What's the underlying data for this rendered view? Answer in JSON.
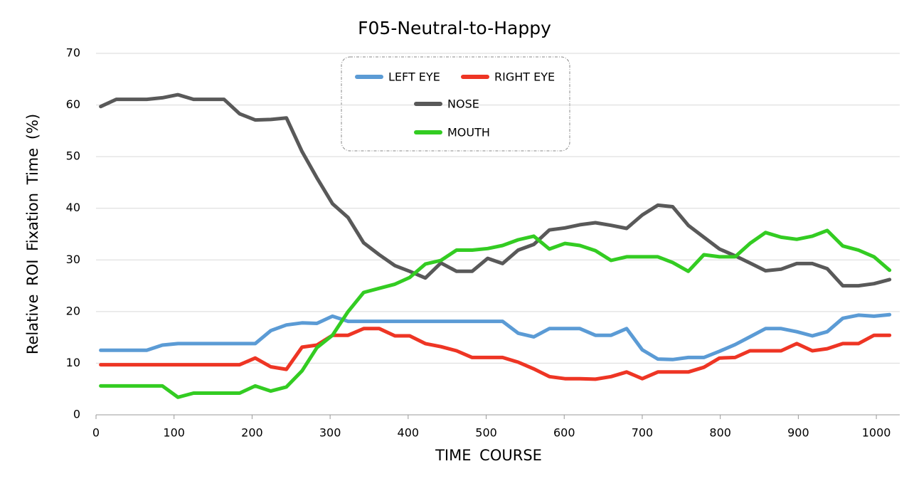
{
  "chart_data": {
    "type": "line",
    "title": "F05-Neutral-to-Happy",
    "x_label": "TIME COURSE",
    "y_label": "Relative ROI Fixation Time (%)",
    "x": [
      6,
      26,
      45,
      65,
      85,
      105,
      125,
      144,
      164,
      184,
      204,
      224,
      244,
      264,
      283,
      303,
      323,
      343,
      363,
      383,
      402,
      422,
      442,
      462,
      482,
      502,
      521,
      541,
      561,
      581,
      601,
      620,
      640,
      660,
      680,
      700,
      720,
      739,
      759,
      779,
      799,
      819,
      838,
      858,
      878,
      898,
      918,
      937,
      957,
      977,
      997,
      1017
    ],
    "series": [
      {
        "name": "LEFT EYE",
        "color": "#5b9bd5",
        "values": [
          12.5,
          12.5,
          12.5,
          12.5,
          13.5,
          13.8,
          13.8,
          13.8,
          13.8,
          13.8,
          13.8,
          16.3,
          17.4,
          17.8,
          17.7,
          19.1,
          18.1,
          18.1,
          18.1,
          18.1,
          18.1,
          18.1,
          18.1,
          18.1,
          18.1,
          18.1,
          18.1,
          15.8,
          15.1,
          16.7,
          16.7,
          16.7,
          15.4,
          15.4,
          16.7,
          12.6,
          10.8,
          10.7,
          11.1,
          11.1,
          12.3,
          13.6,
          15.1,
          16.7,
          16.7,
          16.1,
          15.3,
          16.1,
          18.7,
          19.3,
          19.1,
          19.4
        ]
      },
      {
        "name": "RIGHT EYE",
        "color": "#ee3524",
        "values": [
          9.7,
          9.7,
          9.7,
          9.7,
          9.7,
          9.7,
          9.7,
          9.7,
          9.7,
          9.7,
          11.0,
          9.3,
          8.8,
          13.1,
          13.5,
          15.4,
          15.4,
          16.7,
          16.7,
          15.3,
          15.3,
          13.8,
          13.2,
          12.4,
          11.1,
          11.1,
          11.1,
          10.2,
          8.9,
          7.4,
          7.0,
          7.0,
          6.9,
          7.4,
          8.3,
          7.0,
          8.3,
          8.3,
          8.3,
          9.2,
          11.0,
          11.1,
          12.4,
          12.4,
          12.4,
          13.8,
          12.4,
          12.8,
          13.8,
          13.8,
          15.4,
          15.4
        ]
      },
      {
        "name": "NOSE",
        "color": "#595959",
        "values": [
          59.7,
          61.1,
          61.1,
          61.1,
          61.4,
          62.0,
          61.1,
          61.1,
          61.1,
          58.3,
          57.1,
          57.2,
          57.5,
          51.0,
          45.9,
          40.9,
          38.2,
          33.3,
          31.0,
          28.9,
          27.8,
          26.5,
          29.4,
          27.8,
          27.8,
          30.3,
          29.3,
          31.9,
          33.0,
          35.8,
          36.2,
          36.8,
          37.2,
          36.7,
          36.1,
          38.7,
          40.6,
          40.3,
          36.7,
          34.4,
          32.1,
          30.8,
          29.4,
          27.9,
          28.2,
          29.3,
          29.3,
          28.3,
          25.0,
          25.0,
          25.4,
          26.2
        ]
      },
      {
        "name": "MOUTH",
        "color": "#33cc22",
        "values": [
          5.6,
          5.6,
          5.6,
          5.6,
          5.6,
          3.4,
          4.2,
          4.2,
          4.2,
          4.2,
          5.6,
          4.6,
          5.4,
          8.5,
          13.0,
          15.4,
          20.0,
          23.7,
          24.5,
          25.3,
          26.6,
          29.2,
          29.9,
          31.9,
          31.9,
          32.2,
          32.8,
          33.9,
          34.6,
          32.1,
          33.2,
          32.8,
          31.8,
          29.9,
          30.6,
          30.6,
          30.6,
          29.5,
          27.8,
          31.0,
          30.6,
          30.6,
          33.2,
          35.3,
          34.4,
          34.0,
          34.6,
          35.7,
          32.7,
          31.9,
          30.6,
          28.0
        ]
      }
    ],
    "xlim": [
      0,
      1030
    ],
    "xticks": [
      0,
      100,
      200,
      300,
      400,
      500,
      600,
      700,
      800,
      900,
      1000
    ],
    "ylim": [
      0,
      70
    ],
    "yticks": [
      0,
      10,
      20,
      30,
      40,
      50,
      60,
      70
    ],
    "grid": true
  }
}
